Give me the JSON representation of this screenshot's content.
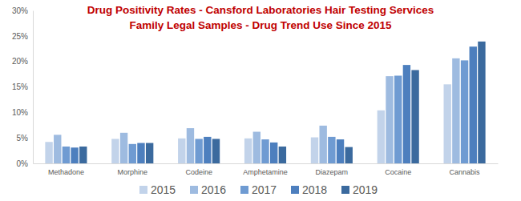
{
  "chart_data": {
    "type": "bar",
    "title": "Drug Positivity Rates - Cansford Laboratories Hair Testing Services",
    "subtitle": "Family Legal Samples - Drug Trend Use  Since 2015",
    "categories": [
      "Methadone",
      "Morphine",
      "Codeine",
      "Amphetamine",
      "Diazepam",
      "Cocaine",
      "Cannabis"
    ],
    "series": [
      {
        "name": "2015",
        "color": "#c2d3ea",
        "values": [
          4.2,
          4.8,
          4.9,
          4.9,
          5.1,
          10.4,
          15.5
        ]
      },
      {
        "name": "2016",
        "color": "#9ebbe0",
        "values": [
          5.6,
          6.0,
          6.9,
          6.2,
          7.4,
          17.1,
          20.6
        ]
      },
      {
        "name": "2017",
        "color": "#6f9bd2",
        "values": [
          3.3,
          3.8,
          4.8,
          4.7,
          5.2,
          17.2,
          20.2
        ]
      },
      {
        "name": "2018",
        "color": "#4d7fbe",
        "values": [
          3.1,
          4.0,
          5.2,
          4.1,
          4.7,
          19.3,
          22.9
        ]
      },
      {
        "name": "2019",
        "color": "#3b6a9e",
        "values": [
          3.3,
          4.0,
          4.8,
          3.3,
          3.2,
          18.3,
          23.9
        ]
      }
    ],
    "ylim": [
      0,
      30
    ],
    "yticks": [
      {
        "value": 0,
        "label": "0%"
      },
      {
        "value": 5,
        "label": "5%"
      },
      {
        "value": 10,
        "label": "10%"
      },
      {
        "value": 15,
        "label": "15%"
      },
      {
        "value": 20,
        "label": "20%"
      },
      {
        "value": 25,
        "label": "25%"
      },
      {
        "value": 30,
        "label": "30%"
      }
    ],
    "grid": false,
    "legend": "bottom"
  }
}
